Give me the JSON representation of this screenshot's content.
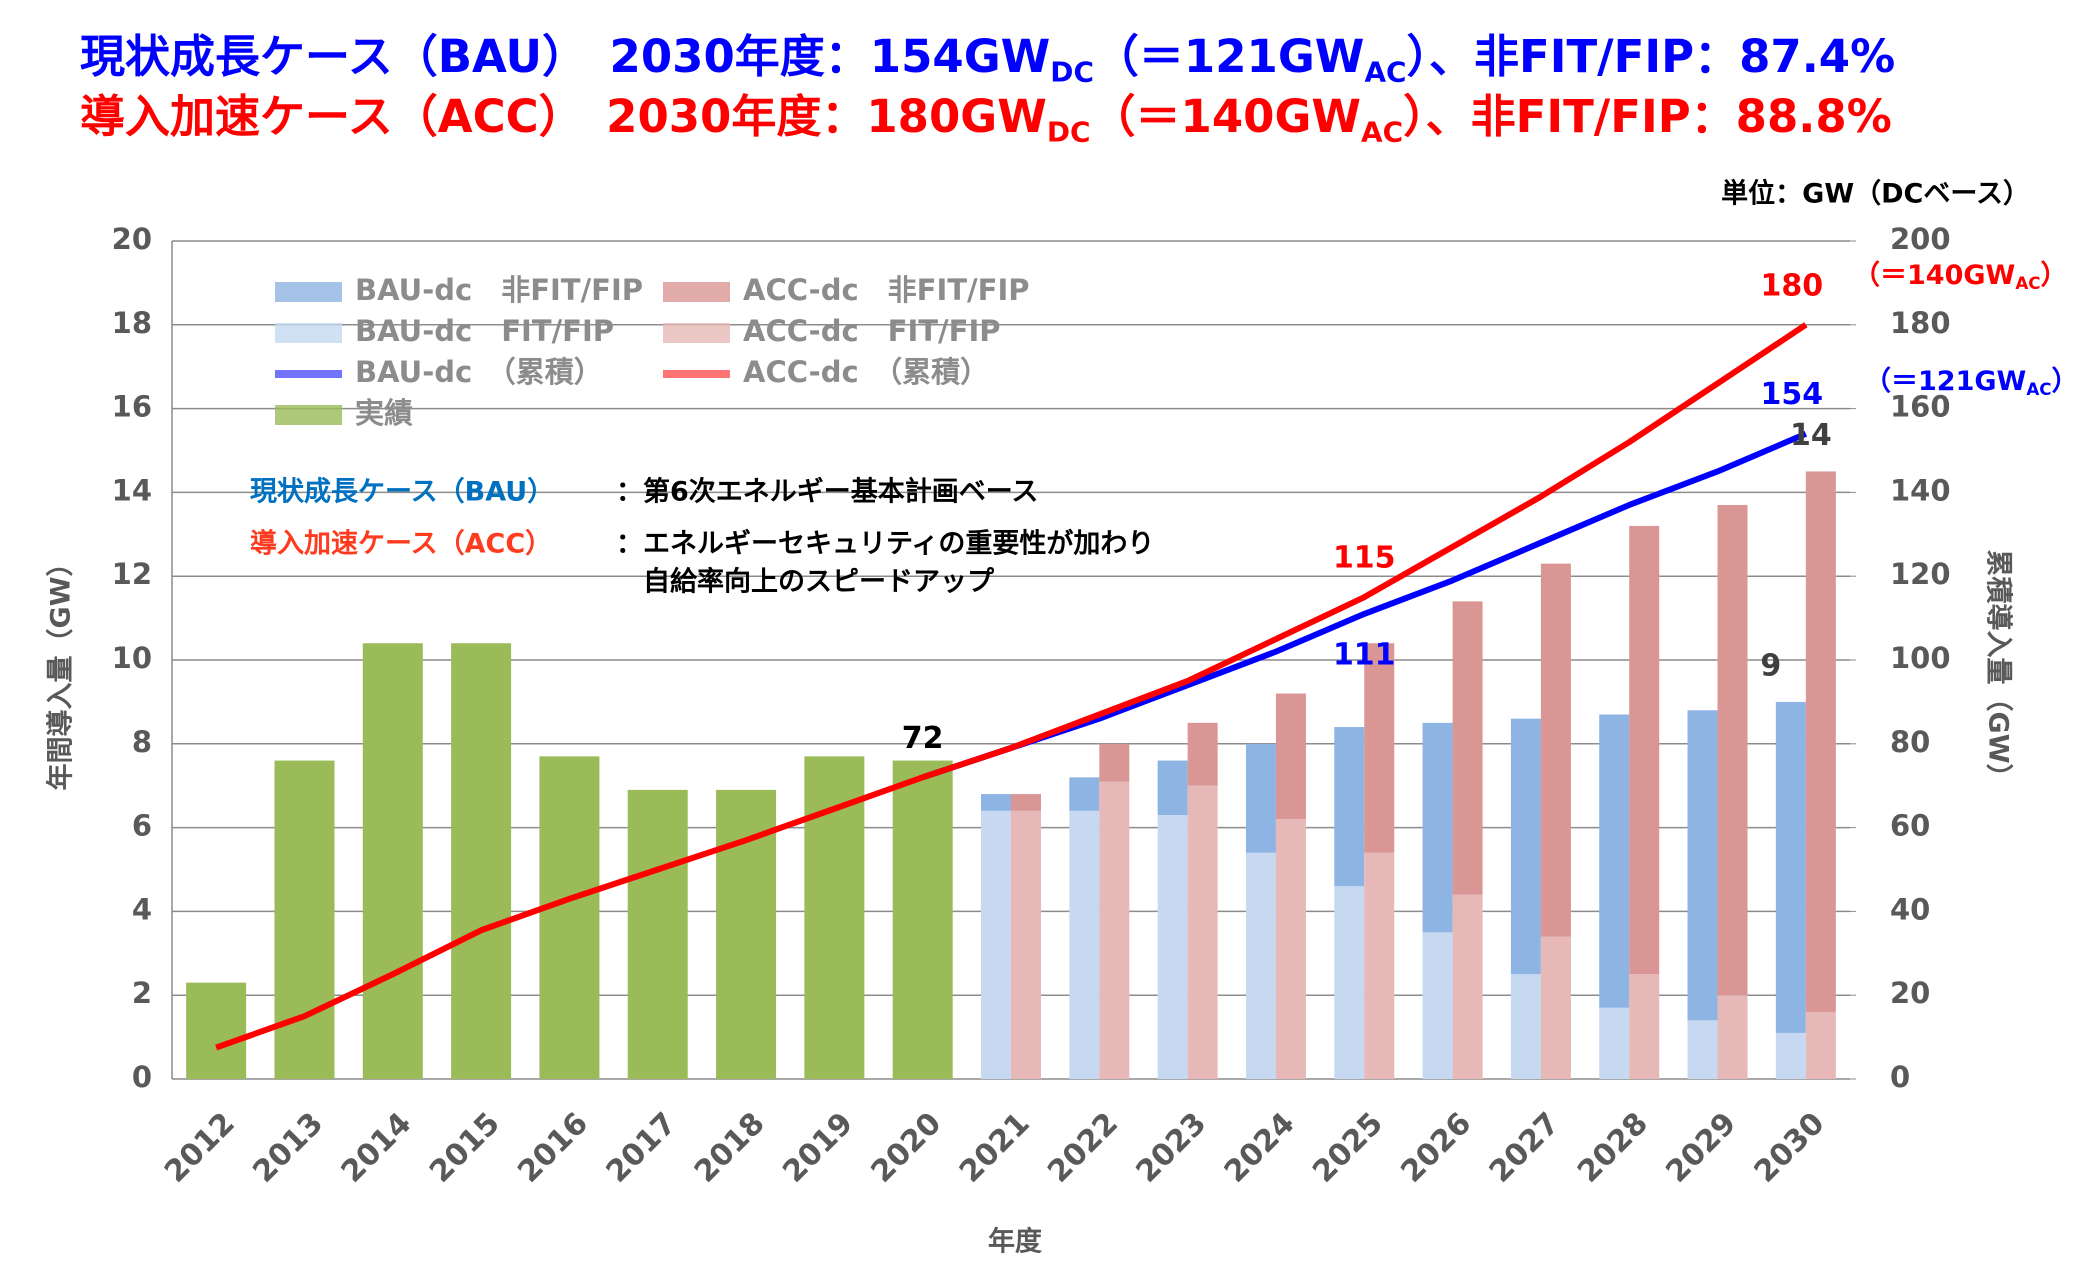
{
  "chart_data": {
    "type": "bar",
    "title_lines": [
      {
        "color": "#0000ff",
        "parts": [
          "現状成長ケース（BAU）　2030年度：154GW",
          "DC",
          "（＝121GW",
          "AC",
          "）、非FIT/FIP：87.4%"
        ]
      },
      {
        "color": "#ff0000",
        "parts": [
          "導入加速ケース（ACC）　2030年度：180GW",
          "DC",
          "（＝140GW",
          "AC",
          "）、非FIT/FIP：88.8%"
        ]
      }
    ],
    "unit_label": "単位：GW（DCベース）",
    "y_label": "年間導入量（GW）",
    "y2_label": "累積導入量（GW）",
    "x_label": "年度",
    "notes": [
      {
        "name": "現状成長ケース（BAU）",
        "color": "#0070c0",
        "lines": [
          "：第6次エネルギー基本計画ベース"
        ]
      },
      {
        "name": "導入加速ケース（ACC）",
        "color": "#ff3b1f",
        "lines": [
          "：エネルギーセキュリティの重要性が加わり",
          "自給率向上のスピードアップ"
        ]
      }
    ],
    "categories": [
      "2012",
      "2013",
      "2014",
      "2015",
      "2016",
      "2017",
      "2018",
      "2019",
      "2020",
      "2021",
      "2022",
      "2023",
      "2024",
      "2025",
      "2026",
      "2027",
      "2028",
      "2029",
      "2030"
    ],
    "series": [
      {
        "name": "BAU-dc　非FIT/FIP",
        "type": "bar",
        "stack": "BAU",
        "color": "#8eb4e3",
        "values": [
          null,
          null,
          null,
          null,
          null,
          null,
          null,
          null,
          null,
          0.4,
          0.8,
          1.3,
          2.6,
          3.8,
          5.0,
          6.1,
          7.0,
          7.4,
          7.9
        ]
      },
      {
        "name": "BAU-dc　FIT/FIP",
        "type": "bar",
        "stack": "BAU",
        "color": "#c6d9f1",
        "values": [
          null,
          null,
          null,
          null,
          null,
          null,
          null,
          null,
          null,
          6.4,
          6.4,
          6.3,
          5.4,
          4.6,
          3.5,
          2.5,
          1.7,
          1.4,
          1.1
        ]
      },
      {
        "name": "BAU-dc　（累積）",
        "type": "line",
        "axis": "y2",
        "color": "#0000ff",
        "values": [
          null,
          null,
          null,
          null,
          null,
          null,
          null,
          null,
          72,
          79,
          86,
          94,
          102,
          111,
          119,
          128,
          137,
          145,
          154
        ],
        "value_labels": [
          null,
          null,
          null,
          null,
          null,
          null,
          null,
          null,
          null,
          null,
          null,
          null,
          null,
          "111",
          null,
          null,
          null,
          null,
          "154"
        ]
      },
      {
        "name": "実績",
        "type": "bar",
        "stack": "ACT",
        "color": "#9bbb59",
        "values": [
          2.3,
          7.6,
          10.4,
          10.4,
          7.7,
          6.9,
          6.9,
          7.7,
          7.6,
          null,
          null,
          null,
          null,
          null,
          null,
          null,
          null,
          null,
          null
        ]
      },
      {
        "name": "ACC-dc　非FIT/FIP",
        "type": "bar",
        "stack": "ACC",
        "color": "#d99694",
        "values": [
          null,
          null,
          null,
          null,
          null,
          null,
          null,
          null,
          null,
          0.4,
          0.9,
          1.5,
          3.0,
          5.0,
          7.0,
          8.9,
          10.7,
          11.7,
          12.9
        ]
      },
      {
        "name": "ACC-dc　FIT/FIP",
        "type": "bar",
        "stack": "ACC",
        "color": "#e6b9b8",
        "values": [
          null,
          null,
          null,
          null,
          null,
          null,
          null,
          null,
          null,
          6.4,
          7.1,
          7.0,
          6.2,
          5.4,
          4.4,
          3.4,
          2.5,
          2.0,
          1.6
        ]
      },
      {
        "name": "ACC-dc　（累積）",
        "type": "line",
        "axis": "y2",
        "color": "#ff0000",
        "values": [
          7.5,
          15,
          25,
          35.5,
          43,
          50,
          57,
          64.5,
          72,
          79,
          87,
          95,
          105,
          115,
          127,
          139,
          152,
          166,
          180
        ],
        "value_labels": [
          null,
          null,
          null,
          null,
          null,
          null,
          null,
          null,
          "72",
          null,
          null,
          null,
          null,
          "115",
          null,
          null,
          null,
          null,
          "180"
        ]
      }
    ],
    "bar_total_labels": [
      "9",
      "14"
    ],
    "ac_notes": [
      {
        "color": "#ff0000",
        "parts": [
          "（＝140GW",
          "AC",
          "）"
        ]
      },
      {
        "color": "#0000ff",
        "parts": [
          "（＝121GW",
          "AC",
          "）"
        ]
      }
    ],
    "ylim": [
      0,
      20
    ],
    "yticks": [
      0,
      2,
      4,
      6,
      8,
      10,
      12,
      14,
      16,
      18,
      20
    ],
    "y2lim": [
      0,
      200
    ],
    "y2ticks": [
      0,
      20,
      40,
      60,
      80,
      100,
      120,
      140,
      160,
      180,
      200
    ],
    "grid": true
  }
}
